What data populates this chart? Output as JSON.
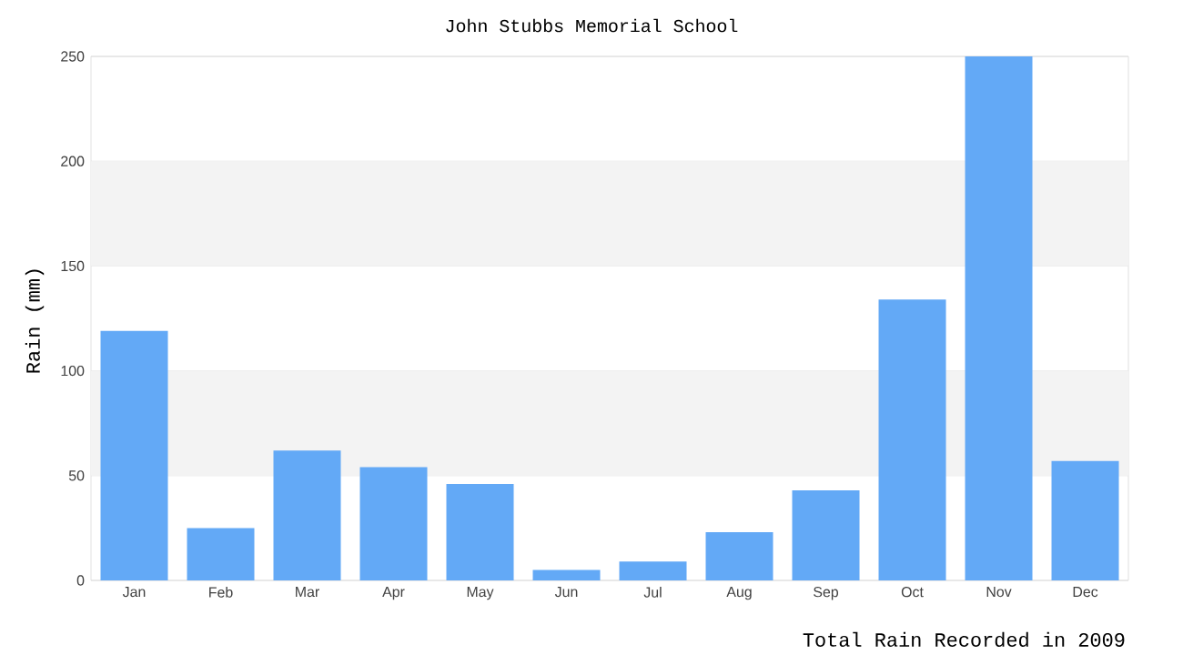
{
  "chart_data": {
    "type": "bar",
    "title": "John Stubbs Memorial School",
    "xlabel": "Total Rain Recorded in 2009",
    "ylabel": "Rain (mm)",
    "categories": [
      "Jan",
      "Feb",
      "Mar",
      "Apr",
      "May",
      "Jun",
      "Jul",
      "Aug",
      "Sep",
      "Oct",
      "Nov",
      "Dec"
    ],
    "values": [
      119,
      25,
      62,
      54,
      46,
      5,
      9,
      23,
      43,
      134,
      250,
      57
    ],
    "color": "#63a9f6",
    "ylim": [
      0,
      250
    ],
    "yticks": [
      0,
      50,
      100,
      150,
      200,
      250
    ],
    "grid": "y",
    "bands": [
      {
        "axis": "y",
        "from": 50,
        "to": 100,
        "color": "#f3f3f3"
      },
      {
        "axis": "y",
        "from": 150,
        "to": 200,
        "color": "#f3f3f3"
      }
    ]
  }
}
